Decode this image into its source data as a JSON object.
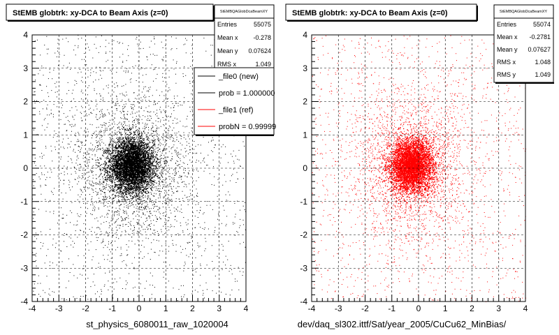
{
  "chart_data": [
    {
      "type": "scatter",
      "title": "StEMB globtrk: xy-DCA to Beam Axis (z=0)",
      "stats": {
        "name": "StEMBQAGlobDcaBeamXY",
        "entries_label": "Entries",
        "entries": "55075",
        "meanx_label": "Mean x",
        "meanx": "-0.278",
        "meany_label": "Mean y",
        "meany": "0.07624",
        "rmsx_label": "RMS x",
        "rmsx": "1.049"
      },
      "legend": [
        {
          "label": "_file0 (new)",
          "color": "#000000"
        },
        {
          "label": "prob = 1.000000",
          "color": "#000000"
        },
        {
          "label": "_file1 (ref)",
          "color": "#ff0000"
        },
        {
          "label": "probN = 0.99999",
          "color": "#ff0000"
        }
      ],
      "xlabel": "st_physics_6080011_raw_1020004",
      "ylabel": "",
      "xlim": [
        -4,
        4
      ],
      "ylim": [
        -4,
        4
      ],
      "xticks": [
        "-4",
        "-3",
        "-2",
        "-1",
        "0",
        "1",
        "2",
        "3",
        "4"
      ],
      "yticks": [
        "-4",
        "-3",
        "-2",
        "-1",
        "0",
        "1",
        "2",
        "3",
        "4"
      ],
      "grid": true,
      "marker_color": "#000000",
      "distribution": {
        "center_x": -0.278,
        "center_y": 0.07624,
        "core_sigma": 0.4,
        "rms": 1.049,
        "entries": 55075
      }
    },
    {
      "type": "scatter",
      "title": "StEMB globtrk: xy-DCA to Beam Axis (z=0)",
      "stats": {
        "name": "StEMBQAGlobDcaBeamXY",
        "entries_label": "Entries",
        "entries": "55074",
        "meanx_label": "Mean x",
        "meanx": "-0.2781",
        "meany_label": "Mean y",
        "meany": "0.07627",
        "rmsx_label": "RMS x",
        "rmsx": "1.048",
        "rmsy_label": "RMS y",
        "rmsy": "1.049"
      },
      "xlabel": "dev/daq_sl302.ittf/Sat/year_2005/CuCu62_MinBias/",
      "ylabel": "",
      "xlim": [
        -4,
        4
      ],
      "ylim": [
        -4,
        4
      ],
      "xticks": [
        "-4",
        "-3",
        "-2",
        "-1",
        "0",
        "1",
        "2",
        "3",
        "4"
      ],
      "yticks": [
        "-4",
        "-3",
        "-2",
        "-1",
        "0",
        "1",
        "2",
        "3",
        "4"
      ],
      "grid": true,
      "marker_color": "#ff0000",
      "distribution": {
        "center_x": -0.2781,
        "center_y": 0.07627,
        "core_sigma": 0.4,
        "rms": 1.048,
        "entries": 55074
      }
    }
  ]
}
